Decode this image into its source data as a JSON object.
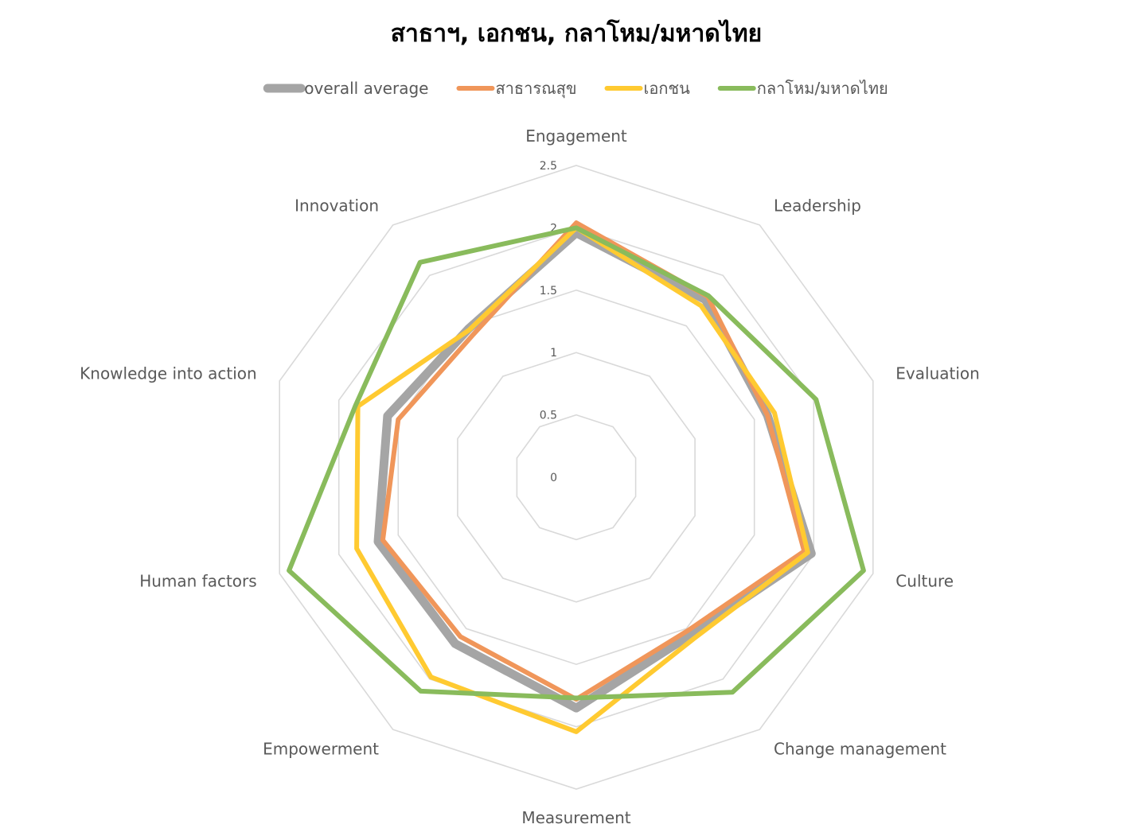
{
  "chart_data": {
    "type": "radar",
    "title": "สาธาฯ, เอกชน, กลาโหม/มหาดไทย",
    "categories": [
      "Engagement",
      "Leadership",
      "Evaluation",
      "Culture",
      "Change management",
      "Measurement",
      "Empowerment",
      "Human factors",
      "Knowledge into action",
      "Innovation"
    ],
    "rmin": 0,
    "rmax": 2.5,
    "ticks": [
      "0",
      "0.5",
      "1",
      "1.5",
      "2",
      "2.5"
    ],
    "grid": true,
    "legend_position": "top",
    "series": [
      {
        "name": "overall average",
        "color": "#A5A5A5",
        "width": 11,
        "values": [
          1.96,
          1.76,
          1.61,
          1.98,
          1.56,
          1.85,
          1.65,
          1.67,
          1.59,
          1.47
        ]
      },
      {
        "name": "สาธารณสุข",
        "color": "#F0965A",
        "width": 6,
        "values": [
          2.04,
          1.79,
          1.61,
          1.92,
          1.52,
          1.78,
          1.58,
          1.63,
          1.5,
          1.41
        ]
      },
      {
        "name": "เอกชน",
        "color": "#FFCA31",
        "width": 6,
        "values": [
          2.0,
          1.7,
          1.67,
          1.95,
          1.6,
          2.04,
          1.98,
          1.85,
          1.84,
          1.46
        ]
      },
      {
        "name": "กลาโหม/มหาดไทย",
        "color": "#89BB5C",
        "width": 6,
        "values": [
          2.0,
          1.8,
          2.02,
          2.42,
          2.13,
          1.77,
          2.12,
          2.42,
          1.86,
          2.13
        ]
      }
    ]
  }
}
